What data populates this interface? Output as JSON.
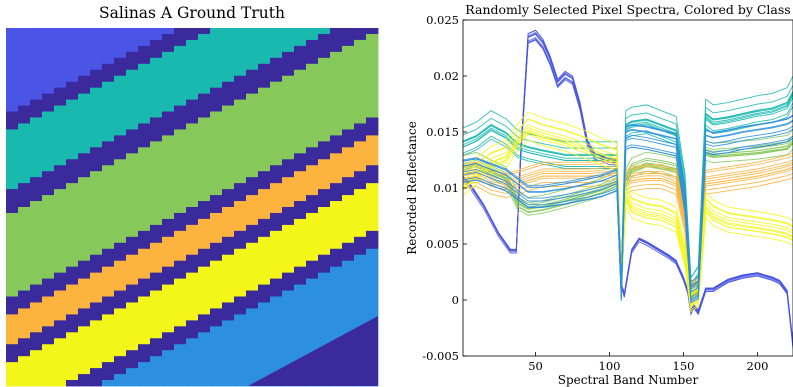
{
  "colors": {
    "class1": "#4a55e6",
    "class2": "#19b9b0",
    "class3": "#86c95a",
    "class4": "#fdb43f",
    "class5": "#f4f61a",
    "class6": "#2d8fe0",
    "border": "#3a2a9c"
  },
  "chart_data": [
    {
      "type": "heatmap",
      "title": "Salinas A Ground Truth",
      "description_classes": [
        "class1",
        "class2",
        "class3",
        "class4",
        "class5",
        "class6"
      ],
      "grid": false
    },
    {
      "type": "line",
      "title": "Randomly Selected Pixel Spectra, Colored by Class",
      "xlabel": "Spectral Band Number",
      "ylabel": "Recorded Reflectance",
      "xlim": [
        1,
        224
      ],
      "ylim": [
        -0.005,
        0.025
      ],
      "xticks": [
        {
          "value": 50,
          "label": "50"
        },
        {
          "value": 100,
          "label": "100"
        },
        {
          "value": 150,
          "label": "150"
        },
        {
          "value": 200,
          "label": "200"
        }
      ],
      "yticks": [
        {
          "value": -0.005,
          "label": "-0.005"
        },
        {
          "value": 0,
          "label": "0"
        },
        {
          "value": 0.005,
          "label": "0.005"
        },
        {
          "value": 0.01,
          "label": "0.01"
        },
        {
          "value": 0.015,
          "label": "0.015"
        },
        {
          "value": 0.02,
          "label": "0.02"
        },
        {
          "value": 0.025,
          "label": "0.025"
        }
      ],
      "grid": false,
      "series": [
        {
          "color": "#4a55e6",
          "x": [
            1,
            5,
            15,
            25,
            33,
            37,
            40,
            45,
            50,
            55,
            60,
            65,
            70,
            75,
            80,
            85,
            90,
            95,
            100,
            105,
            108,
            110,
            115,
            120,
            125,
            130,
            140,
            145,
            150,
            153,
            155,
            157,
            160,
            165,
            170,
            180,
            190,
            200,
            210,
            215,
            220,
            224
          ],
          "y": [
            0.011,
            0.0105,
            0.0085,
            0.006,
            0.0045,
            0.0045,
            0.013,
            0.0235,
            0.0238,
            0.023,
            0.0215,
            0.0195,
            0.0202,
            0.0198,
            0.0175,
            0.0142,
            0.013,
            0.0128,
            0.0125,
            0.0125,
            0.0015,
            0.0005,
            0.0045,
            0.0055,
            0.0052,
            0.0048,
            0.004,
            0.0035,
            0.002,
            0.0008,
            -0.001,
            -0.0005,
            -0.001,
            0.001,
            0.001,
            0.0018,
            0.0022,
            0.0024,
            0.002,
            0.0017,
            0.0008,
            -0.004
          ]
        },
        {
          "color": "#19b9b0",
          "x": [
            1,
            10,
            20,
            30,
            38,
            45,
            55,
            70,
            85,
            95,
            105,
            108,
            111,
            115,
            125,
            135,
            145,
            151,
            155,
            160,
            165,
            170,
            180,
            190,
            200,
            210,
            220,
            224
          ],
          "y": [
            0.014,
            0.0145,
            0.0155,
            0.0148,
            0.0138,
            0.0135,
            0.0132,
            0.0128,
            0.0128,
            0.0128,
            0.0128,
            0.0015,
            0.0155,
            0.0158,
            0.016,
            0.0155,
            0.015,
            0.01,
            0.001,
            0.002,
            0.0165,
            0.016,
            0.0162,
            0.0165,
            0.0168,
            0.017,
            0.0175,
            0.0185
          ]
        },
        {
          "color": "#86c95a",
          "x": [
            1,
            10,
            20,
            30,
            38,
            45,
            55,
            70,
            85,
            95,
            105,
            108,
            111,
            115,
            125,
            135,
            145,
            151,
            155,
            160,
            165,
            170,
            180,
            190,
            200,
            210,
            220,
            224
          ],
          "y": [
            0.0122,
            0.0125,
            0.0118,
            0.0112,
            0.009,
            0.0085,
            0.0087,
            0.0092,
            0.0098,
            0.0102,
            0.0108,
            0.001,
            0.011,
            0.012,
            0.0125,
            0.0123,
            0.012,
            0.008,
            0.001,
            0.0015,
            0.0135,
            0.0133,
            0.0134,
            0.0135,
            0.0136,
            0.0138,
            0.014,
            0.0145
          ]
        },
        {
          "color": "#fdb43f",
          "x": [
            1,
            10,
            20,
            30,
            38,
            45,
            55,
            70,
            85,
            95,
            105,
            108,
            111,
            115,
            125,
            135,
            145,
            151,
            155,
            160,
            165,
            170,
            180,
            190,
            200,
            210,
            220,
            224
          ],
          "y": [
            0.011,
            0.0112,
            0.0105,
            0.0102,
            0.0105,
            0.0108,
            0.0112,
            0.0112,
            0.0112,
            0.0113,
            0.0115,
            0.0015,
            0.0105,
            0.0108,
            0.011,
            0.011,
            0.0105,
            0.007,
            0.0005,
            0.001,
            0.0105,
            0.0106,
            0.0108,
            0.011,
            0.0112,
            0.0115,
            0.0118,
            0.012
          ]
        },
        {
          "color": "#f4f61a",
          "x": [
            1,
            10,
            20,
            30,
            38,
            45,
            55,
            70,
            85,
            95,
            105,
            108,
            111,
            115,
            125,
            135,
            145,
            151,
            155,
            160,
            165,
            170,
            180,
            190,
            200,
            210,
            220,
            224
          ],
          "y": [
            0.0105,
            0.0115,
            0.0125,
            0.013,
            0.0145,
            0.0155,
            0.015,
            0.0145,
            0.0138,
            0.0132,
            0.0128,
            0.0015,
            0.0095,
            0.0085,
            0.008,
            0.0078,
            0.0072,
            0.004,
            0.0,
            0.0005,
            0.0085,
            0.0078,
            0.0072,
            0.007,
            0.0068,
            0.0066,
            0.0063,
            0.006
          ]
        },
        {
          "color": "#2d8fe0",
          "x": [
            1,
            10,
            20,
            30,
            38,
            45,
            55,
            70,
            85,
            95,
            105,
            108,
            111,
            115,
            125,
            135,
            145,
            151,
            155,
            160,
            165,
            170,
            180,
            190,
            200,
            210,
            220,
            224
          ],
          "y": [
            0.0118,
            0.012,
            0.0115,
            0.011,
            0.0102,
            0.0095,
            0.0095,
            0.0098,
            0.0102,
            0.0105,
            0.011,
            0.001,
            0.0148,
            0.015,
            0.0148,
            0.0145,
            0.0142,
            0.009,
            0.0008,
            0.0012,
            0.0145,
            0.0143,
            0.0145,
            0.0148,
            0.015,
            0.0152,
            0.0155,
            0.0158
          ]
        }
      ]
    }
  ]
}
